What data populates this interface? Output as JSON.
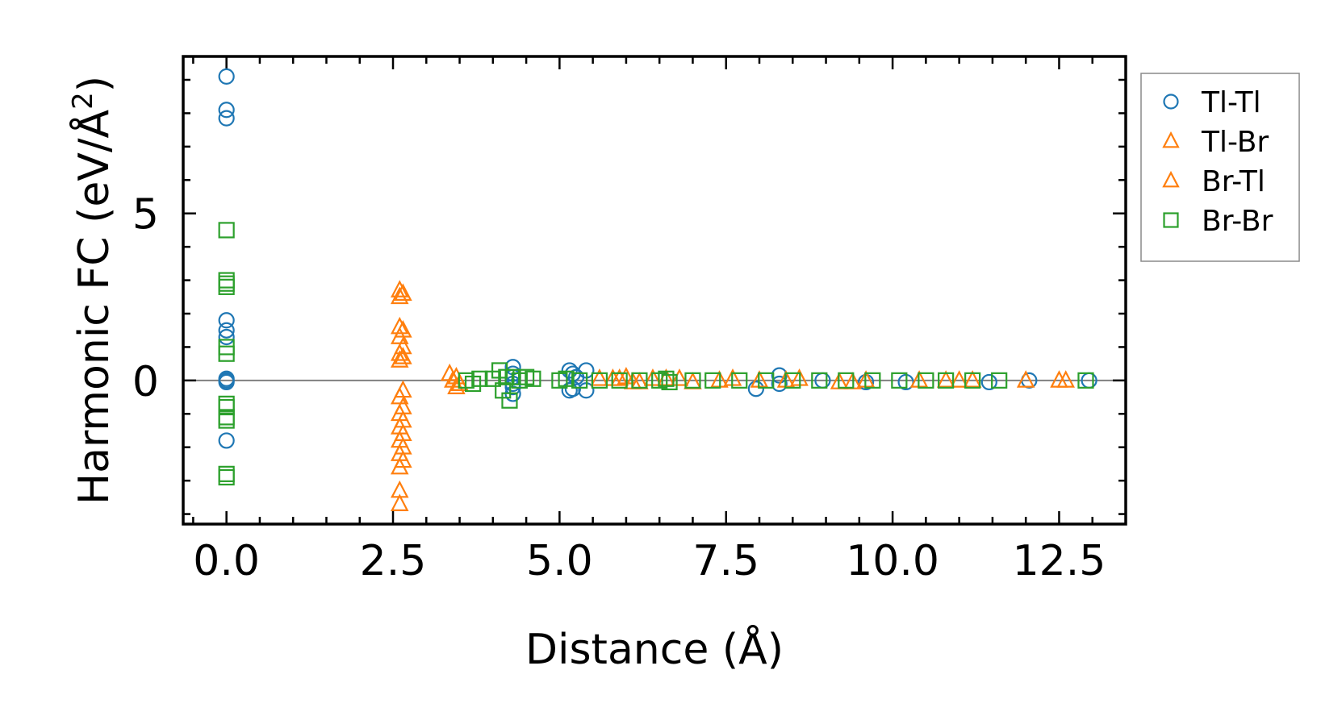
{
  "chart_data": {
    "type": "scatter",
    "title": "",
    "xlabel": "Distance (Å)",
    "ylabel_main": "Harmonic FC (eV/Å",
    "ylabel_sup": "2",
    "ylabel_close": ")",
    "xlim": [
      -0.65,
      13.5
    ],
    "ylim": [
      -4.3,
      9.7
    ],
    "x_ticks": [
      0.0,
      2.5,
      5.0,
      7.5,
      10.0,
      12.5
    ],
    "x_tick_labels": [
      "0.0",
      "2.5",
      "5.0",
      "7.5",
      "10.0",
      "12.5"
    ],
    "y_ticks": [
      0,
      5
    ],
    "y_tick_labels": [
      "0",
      "5"
    ],
    "zero_line": true,
    "legend_position": "outside-right-top",
    "series": [
      {
        "name": "Tl-Tl",
        "marker": "circle",
        "color": "#1f77b4",
        "x": [
          0,
          0,
          0,
          0,
          0,
          0,
          0,
          0,
          0,
          0,
          4.3,
          4.3,
          4.3,
          4.3,
          4.3,
          4.3,
          5.15,
          5.15,
          5.2,
          5.2,
          5.25,
          5.4,
          5.4,
          7.95,
          8.3,
          8.3,
          8.95,
          9.6,
          10.2,
          11.45,
          12.05,
          12.95
        ],
        "y": [
          9.1,
          8.1,
          7.85,
          1.8,
          1.5,
          1.3,
          0.05,
          0,
          -0.05,
          -1.8,
          0.4,
          0.2,
          0.1,
          -0.1,
          -0.2,
          -0.4,
          0.3,
          -0.3,
          0.2,
          -0.25,
          0.1,
          0.3,
          -0.3,
          -0.25,
          0.15,
          -0.1,
          0,
          -0.05,
          -0.05,
          -0.05,
          0,
          0
        ]
      },
      {
        "name": "Tl-Br",
        "marker": "triangle",
        "color": "#ff7f0e",
        "x": [
          2.6,
          2.6,
          2.6,
          2.6,
          2.6,
          2.6,
          2.6,
          2.6,
          2.6,
          2.6,
          2.6,
          2.6,
          2.6,
          2.6,
          3.35,
          3.4,
          3.45,
          3.5,
          5.6,
          5.8,
          6.0,
          6.2,
          6.4,
          6.8,
          7.0,
          7.6,
          8.0,
          8.6,
          9.2,
          9.6,
          10.4,
          10.8,
          11.2,
          12.0,
          12.5
        ],
        "y": [
          2.7,
          2.5,
          1.6,
          1.3,
          0.8,
          0.6,
          -0.5,
          -1.0,
          -1.4,
          -1.8,
          -2.2,
          -2.6,
          -3.3,
          -3.7,
          0.2,
          0,
          -0.2,
          -0.1,
          0.05,
          0.05,
          0.1,
          -0.05,
          0.05,
          0.05,
          -0.05,
          0.05,
          0,
          0.05,
          -0.05,
          0,
          0,
          0,
          0,
          0,
          0
        ]
      },
      {
        "name": "Br-Tl",
        "marker": "triangle",
        "color": "#ff7f0e",
        "x": [
          2.65,
          2.65,
          2.65,
          2.65,
          2.65,
          2.65,
          2.65,
          2.65,
          2.65,
          2.65,
          3.45,
          3.5,
          5.9,
          6.1,
          6.6,
          7.4,
          8.4,
          9.4,
          11.0,
          12.6
        ],
        "y": [
          2.6,
          1.5,
          1.0,
          0.7,
          -0.3,
          -0.8,
          -1.2,
          -1.6,
          -2.0,
          -2.4,
          0.1,
          -0.1,
          0.05,
          -0.05,
          0.05,
          0,
          0,
          -0.05,
          0,
          0
        ]
      },
      {
        "name": "Br-Br",
        "marker": "square",
        "color": "#2ca02c",
        "x": [
          0,
          0,
          0,
          0,
          0,
          0,
          0,
          0,
          0,
          0,
          0,
          0,
          3.6,
          3.7,
          3.8,
          4.0,
          4.1,
          4.15,
          4.2,
          4.25,
          4.3,
          4.4,
          4.5,
          4.6,
          5.0,
          5.1,
          5.3,
          5.6,
          5.9,
          6.2,
          6.5,
          6.6,
          6.65,
          7.0,
          7.3,
          7.7,
          8.1,
          8.5,
          8.9,
          9.3,
          9.7,
          10.1,
          10.5,
          10.8,
          11.2,
          11.6,
          12.9
        ],
        "y": [
          4.5,
          3.0,
          2.9,
          2.8,
          1.0,
          0.8,
          -0.7,
          -0.8,
          -1.1,
          -1.2,
          -2.8,
          -2.9,
          0,
          -0.1,
          0.05,
          0.05,
          0.3,
          -0.3,
          0.1,
          -0.6,
          0.1,
          0,
          0.1,
          0.05,
          0,
          0.05,
          0,
          0,
          0,
          0,
          0,
          0.05,
          -0.05,
          0,
          0,
          0,
          0,
          0,
          0,
          0,
          0,
          0,
          0,
          0,
          0,
          0,
          0
        ]
      }
    ]
  }
}
